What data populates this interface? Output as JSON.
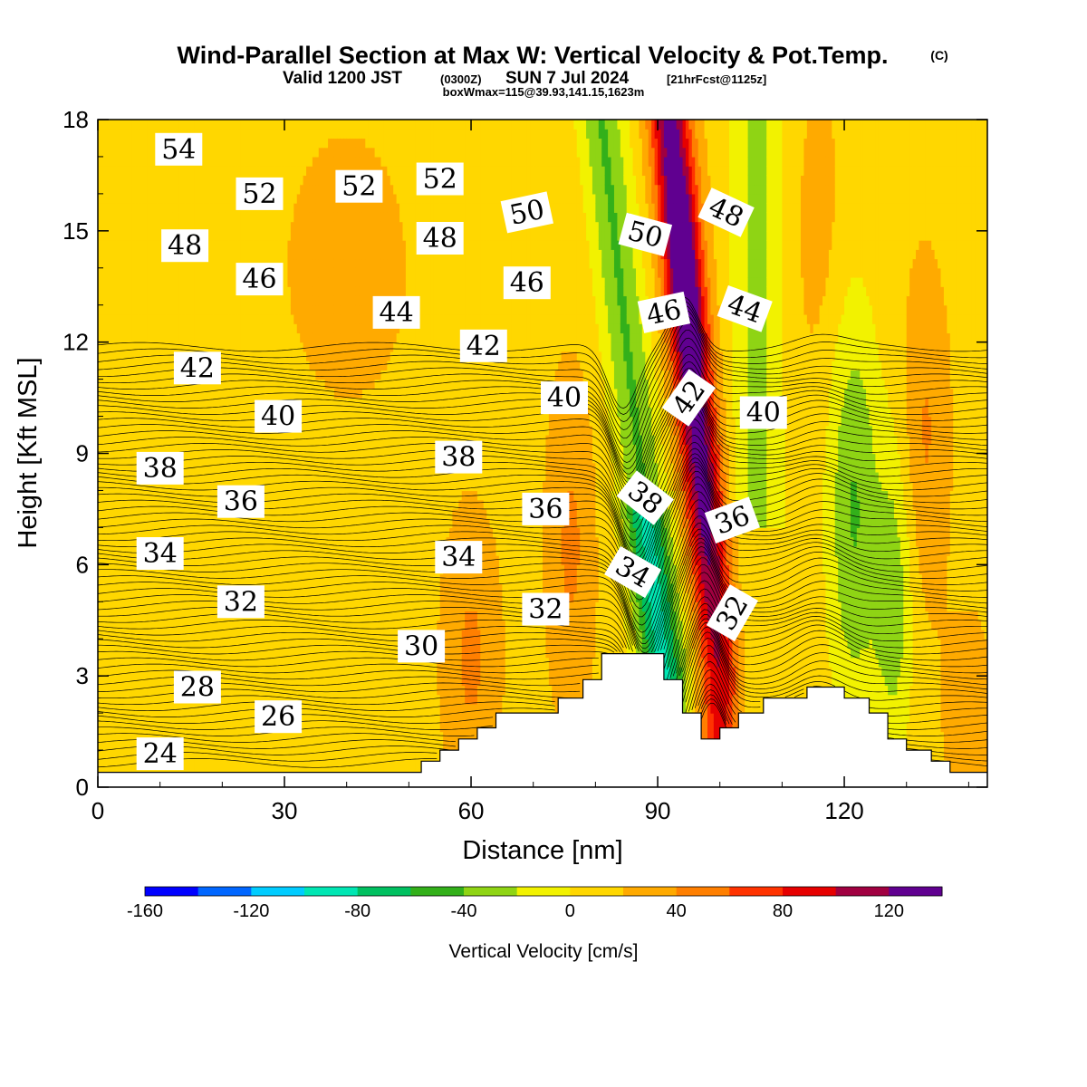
{
  "header": {
    "title_main": "Wind-Parallel Section at Max W: Vertical Velocity & Pot.Temp.",
    "title_copyright": "(C)",
    "valid_prefix": "Valid 1200 JST",
    "valid_utc": "(0300Z)",
    "valid_date": "SUN 7 Jul 2024",
    "valid_fcst": "[21hrFcst@1125z]",
    "box_info": "boxWmax=115@39.93,141.15,1623m"
  },
  "colors": {
    "background": "#ffffff",
    "terrain": "#ffffff",
    "contour_line": "#000000",
    "bin_colors": [
      "#0000ff",
      "#0066ff",
      "#00ccff",
      "#00e6b3",
      "#00c060",
      "#33b01a",
      "#8fd414",
      "#f2f200",
      "#ffd700",
      "#ffaa00",
      "#ff7f00",
      "#ff3300",
      "#e60000",
      "#a00040",
      "#600090"
    ]
  },
  "chart_data": {
    "type": "heatmap",
    "title": "Wind-Parallel Section at Max W: Vertical Velocity & Pot.Temp.",
    "xlabel": "Distance [nm]",
    "ylabel": "Height [Kft MSL]",
    "xlim": [
      0,
      143
    ],
    "ylim": [
      0,
      18
    ],
    "x_ticks": [
      0,
      30,
      60,
      90,
      120
    ],
    "y_ticks": [
      0,
      3,
      6,
      9,
      12,
      15,
      18
    ],
    "colorbar": {
      "title": "Vertical Velocity [cm/s]",
      "bounds": [
        -160,
        -140,
        -120,
        -100,
        -80,
        -60,
        -40,
        -20,
        0,
        20,
        40,
        60,
        80,
        100,
        120,
        140
      ],
      "tick_labels": [
        -160,
        -120,
        -80,
        -40,
        0,
        40,
        80,
        120
      ]
    },
    "terrain_profile": [
      [
        0,
        0.4
      ],
      [
        52,
        0.4
      ],
      [
        52,
        0.7
      ],
      [
        55,
        0.7
      ],
      [
        55,
        1.0
      ],
      [
        58,
        1.0
      ],
      [
        58,
        1.3
      ],
      [
        61,
        1.3
      ],
      [
        61,
        1.6
      ],
      [
        64,
        1.6
      ],
      [
        64,
        2.0
      ],
      [
        74,
        2.0
      ],
      [
        74,
        2.4
      ],
      [
        78,
        2.4
      ],
      [
        78,
        2.9
      ],
      [
        81,
        2.9
      ],
      [
        81,
        3.6
      ],
      [
        91,
        3.6
      ],
      [
        91,
        2.9
      ],
      [
        94,
        2.9
      ],
      [
        94,
        2.0
      ],
      [
        97,
        2.0
      ],
      [
        97,
        1.3
      ],
      [
        100,
        1.3
      ],
      [
        100,
        1.6
      ],
      [
        103,
        1.6
      ],
      [
        103,
        2.0
      ],
      [
        107,
        2.0
      ],
      [
        107,
        2.4
      ],
      [
        114,
        2.4
      ],
      [
        114,
        2.7
      ],
      [
        120,
        2.7
      ],
      [
        120,
        2.4
      ],
      [
        124,
        2.4
      ],
      [
        124,
        2.0
      ],
      [
        127,
        2.0
      ],
      [
        127,
        1.3
      ],
      [
        130,
        1.3
      ],
      [
        130,
        1.0
      ],
      [
        134,
        1.0
      ],
      [
        134,
        0.7
      ],
      [
        137,
        0.7
      ],
      [
        137,
        0.4
      ],
      [
        143,
        0.4
      ]
    ],
    "velocity_features": [
      {
        "x": 97,
        "y": 13.5,
        "value": 120
      },
      {
        "x": 95,
        "y": 8.0,
        "value": 90
      },
      {
        "x": 91,
        "y": 5.0,
        "value": -90
      },
      {
        "x": 122,
        "y": 9.0,
        "value": -40
      },
      {
        "x": 60,
        "y": 3.5,
        "value": 50
      },
      {
        "x": 135,
        "y": 9.5,
        "value": 50
      }
    ],
    "theta_contour_labels": [
      {
        "value": "54",
        "x": 13,
        "y": 17.2,
        "rot": 0
      },
      {
        "value": "52",
        "x": 26,
        "y": 16.0,
        "rot": 0
      },
      {
        "value": "52",
        "x": 42,
        "y": 16.2,
        "rot": 0
      },
      {
        "value": "52",
        "x": 55,
        "y": 16.4,
        "rot": 0
      },
      {
        "value": "50",
        "x": 69,
        "y": 15.5,
        "rot": -12
      },
      {
        "value": "50",
        "x": 88,
        "y": 14.9,
        "rot": 15
      },
      {
        "value": "48",
        "x": 101,
        "y": 15.5,
        "rot": 25
      },
      {
        "value": "48",
        "x": 14,
        "y": 14.6,
        "rot": 0
      },
      {
        "value": "48",
        "x": 55,
        "y": 14.8,
        "rot": 0
      },
      {
        "value": "46",
        "x": 26,
        "y": 13.7,
        "rot": 0
      },
      {
        "value": "46",
        "x": 69,
        "y": 13.6,
        "rot": 0
      },
      {
        "value": "46",
        "x": 91,
        "y": 12.8,
        "rot": -12
      },
      {
        "value": "44",
        "x": 48,
        "y": 12.8,
        "rot": 0
      },
      {
        "value": "44",
        "x": 104,
        "y": 12.9,
        "rot": 20
      },
      {
        "value": "42",
        "x": 16,
        "y": 11.3,
        "rot": 0
      },
      {
        "value": "42",
        "x": 62,
        "y": 11.9,
        "rot": 0
      },
      {
        "value": "42",
        "x": 95,
        "y": 10.5,
        "rot": -55
      },
      {
        "value": "40",
        "x": 29,
        "y": 10.0,
        "rot": 0
      },
      {
        "value": "40",
        "x": 75,
        "y": 10.5,
        "rot": 0
      },
      {
        "value": "40",
        "x": 107,
        "y": 10.1,
        "rot": 0
      },
      {
        "value": "38",
        "x": 10,
        "y": 8.6,
        "rot": 0
      },
      {
        "value": "38",
        "x": 58,
        "y": 8.9,
        "rot": 0
      },
      {
        "value": "38",
        "x": 88,
        "y": 7.8,
        "rot": 38
      },
      {
        "value": "36",
        "x": 23,
        "y": 7.7,
        "rot": 0
      },
      {
        "value": "36",
        "x": 72,
        "y": 7.5,
        "rot": 0
      },
      {
        "value": "36",
        "x": 102,
        "y": 7.2,
        "rot": -20
      },
      {
        "value": "34",
        "x": 10,
        "y": 6.3,
        "rot": 0
      },
      {
        "value": "34",
        "x": 58,
        "y": 6.2,
        "rot": 0
      },
      {
        "value": "34",
        "x": 86,
        "y": 5.8,
        "rot": 30
      },
      {
        "value": "32",
        "x": 23,
        "y": 5.0,
        "rot": 0
      },
      {
        "value": "32",
        "x": 72,
        "y": 4.8,
        "rot": 0
      },
      {
        "value": "32",
        "x": 102,
        "y": 4.7,
        "rot": -60
      },
      {
        "value": "30",
        "x": 52,
        "y": 3.8,
        "rot": 0
      },
      {
        "value": "28",
        "x": 16,
        "y": 2.7,
        "rot": 0
      },
      {
        "value": "26",
        "x": 29,
        "y": 1.9,
        "rot": 0
      },
      {
        "value": "24",
        "x": 10,
        "y": 0.9,
        "rot": 0
      }
    ]
  }
}
